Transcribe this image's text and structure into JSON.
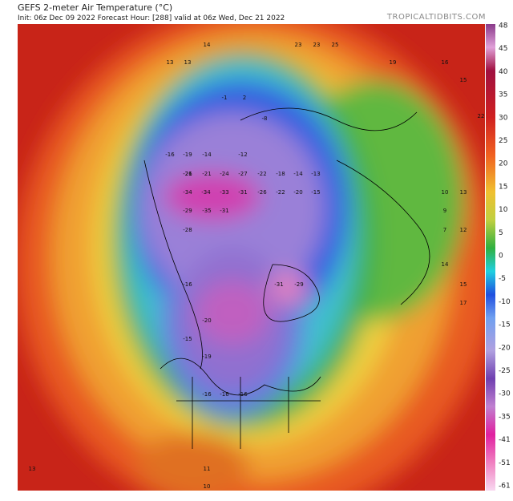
{
  "header": {
    "title": "GEFS 2-meter Air Temperature (°C)",
    "init": "Init: 06z Dec 09 2022   Forecast Hour: [288]   valid at 06z Wed, Dec 21 2022",
    "site": "TROPICALTIDBITS.COM"
  },
  "colorbar": {
    "labels": [
      48,
      45,
      40,
      35,
      30,
      25,
      20,
      15,
      10,
      5,
      0,
      -5,
      -10,
      -15,
      -20,
      -25,
      -30,
      -35,
      -41,
      -51,
      -61
    ]
  },
  "map": {
    "labels": [
      "14",
      "23",
      "23",
      "25",
      "13",
      "13",
      "19",
      "16",
      "15",
      "22",
      "2",
      "-1",
      "-8",
      "-16",
      "-19",
      "-14",
      "-12",
      "-21",
      "-26",
      "-21",
      "-24",
      "-27",
      "-22",
      "-18",
      "-14",
      "-13",
      "-34",
      "-34",
      "-33",
      "-31",
      "-26",
      "-22",
      "-20",
      "-15",
      "-29",
      "-35",
      "-31",
      "-28",
      "-31",
      "-29",
      "-16",
      "-20",
      "-15",
      "-19",
      "-16",
      "-16",
      "-16",
      "13",
      "11",
      "10",
      "14",
      "15",
      "17",
      "10",
      "13",
      "9",
      "7",
      "12"
    ]
  }
}
